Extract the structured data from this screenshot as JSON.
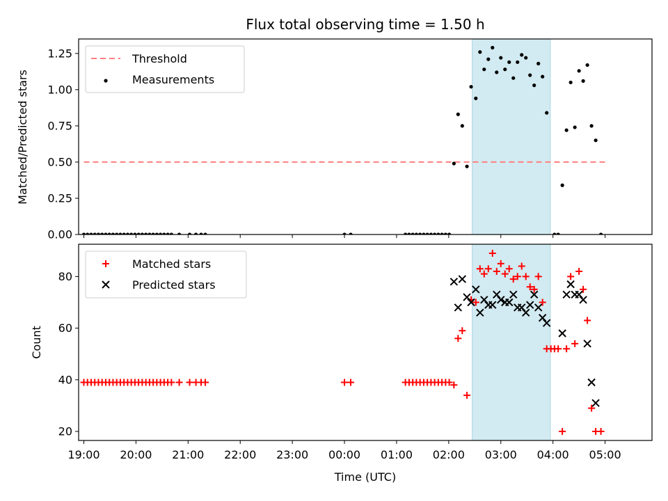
{
  "title": "Flux total observing time = 1.50 h",
  "colors": {
    "threshold": "#ff7f7f",
    "measurement": "#000000",
    "matched": "#ff0000",
    "predicted": "#000000",
    "highlight": "#add8e6"
  },
  "chart_data": [
    {
      "type": "scatter",
      "ylabel": "Matched/Predicted stars",
      "xlabel": "",
      "xlim": [
        -0.1,
        10.9
      ],
      "ylim": [
        0,
        1.35
      ],
      "yticks": [
        0,
        0.25,
        0.5,
        0.75,
        1.0,
        1.25
      ],
      "ytick_labels": [
        "0.00",
        "0.25",
        "0.50",
        "0.75",
        "1.00",
        "1.25"
      ],
      "highlight_span": [
        7.45,
        8.95
      ],
      "legend": {
        "position": "upper-left",
        "entries": [
          {
            "label": "Threshold",
            "marker": "dashed-line"
          },
          {
            "label": "Measurements",
            "marker": "dot"
          }
        ]
      },
      "threshold": {
        "name": "Threshold",
        "value": 0.5,
        "x": [
          0,
          10
        ]
      },
      "series": [
        {
          "name": "Measurements",
          "marker": "dot",
          "points": [
            [
              0,
              0
            ],
            [
              0.07,
              0
            ],
            [
              0.14,
              0
            ],
            [
              0.21,
              0
            ],
            [
              0.28,
              0
            ],
            [
              0.35,
              0
            ],
            [
              0.42,
              0
            ],
            [
              0.49,
              0
            ],
            [
              0.56,
              0
            ],
            [
              0.63,
              0
            ],
            [
              0.7,
              0
            ],
            [
              0.77,
              0
            ],
            [
              0.84,
              0
            ],
            [
              0.91,
              0
            ],
            [
              0.98,
              0
            ],
            [
              1.05,
              0
            ],
            [
              1.12,
              0
            ],
            [
              1.19,
              0
            ],
            [
              1.26,
              0
            ],
            [
              1.33,
              0
            ],
            [
              1.4,
              0
            ],
            [
              1.47,
              0
            ],
            [
              1.54,
              0
            ],
            [
              1.61,
              0
            ],
            [
              1.68,
              0
            ],
            [
              1.83,
              0
            ],
            [
              2.03,
              0
            ],
            [
              2.15,
              0
            ],
            [
              2.25,
              0
            ],
            [
              2.33,
              0
            ],
            [
              5.0,
              0
            ],
            [
              5.12,
              0
            ],
            [
              6.17,
              0
            ],
            [
              6.24,
              0
            ],
            [
              6.31,
              0
            ],
            [
              6.38,
              0
            ],
            [
              6.45,
              0
            ],
            [
              6.52,
              0
            ],
            [
              6.59,
              0
            ],
            [
              6.66,
              0
            ],
            [
              6.73,
              0
            ],
            [
              6.8,
              0
            ],
            [
              6.87,
              0
            ],
            [
              6.94,
              0
            ],
            [
              7.01,
              0
            ],
            [
              7.1,
              0.49
            ],
            [
              7.18,
              0.83
            ],
            [
              7.26,
              0.75
            ],
            [
              7.35,
              0.47
            ],
            [
              7.43,
              1.02
            ],
            [
              7.52,
              0.94
            ],
            [
              7.6,
              1.26
            ],
            [
              7.68,
              1.14
            ],
            [
              7.76,
              1.21
            ],
            [
              7.84,
              1.29
            ],
            [
              7.92,
              1.12
            ],
            [
              8.0,
              1.22
            ],
            [
              8.08,
              1.14
            ],
            [
              8.16,
              1.19
            ],
            [
              8.24,
              1.08
            ],
            [
              8.32,
              1.19
            ],
            [
              8.4,
              1.24
            ],
            [
              8.48,
              1.22
            ],
            [
              8.56,
              1.1
            ],
            [
              8.64,
              1.03
            ],
            [
              8.72,
              1.18
            ],
            [
              8.8,
              1.09
            ],
            [
              8.88,
              0.84
            ],
            [
              9.03,
              0
            ],
            [
              9.1,
              0
            ],
            [
              9.18,
              0.34
            ],
            [
              9.26,
              0.72
            ],
            [
              9.34,
              1.05
            ],
            [
              9.42,
              0.74
            ],
            [
              9.5,
              1.13
            ],
            [
              9.58,
              1.06
            ],
            [
              9.66,
              1.17
            ],
            [
              9.74,
              0.75
            ],
            [
              9.82,
              0.65
            ],
            [
              9.92,
              0
            ]
          ]
        }
      ]
    },
    {
      "type": "scatter",
      "ylabel": "Count",
      "xlabel": "Time (UTC)",
      "xlim": [
        -0.1,
        10.9
      ],
      "ylim": [
        16.5,
        92.5
      ],
      "yticks": [
        20,
        40,
        60,
        80
      ],
      "ytick_labels": [
        "20",
        "40",
        "60",
        "80"
      ],
      "xticks": [
        0,
        1,
        2,
        3,
        4,
        5,
        6,
        7,
        8,
        9,
        10
      ],
      "xtick_labels": [
        "19:00",
        "20:00",
        "21:00",
        "22:00",
        "23:00",
        "00:00",
        "01:00",
        "02:00",
        "03:00",
        "04:00",
        "05:00"
      ],
      "highlight_span": [
        7.45,
        8.95
      ],
      "legend": {
        "position": "upper-left",
        "entries": [
          {
            "label": "Matched stars",
            "marker": "plus"
          },
          {
            "label": "Predicted stars",
            "marker": "x"
          }
        ]
      },
      "series": [
        {
          "name": "Matched stars",
          "marker": "plus",
          "points": [
            [
              0,
              39
            ],
            [
              0.07,
              39
            ],
            [
              0.14,
              39
            ],
            [
              0.21,
              39
            ],
            [
              0.28,
              39
            ],
            [
              0.35,
              39
            ],
            [
              0.42,
              39
            ],
            [
              0.49,
              39
            ],
            [
              0.56,
              39
            ],
            [
              0.63,
              39
            ],
            [
              0.7,
              39
            ],
            [
              0.77,
              39
            ],
            [
              0.84,
              39
            ],
            [
              0.91,
              39
            ],
            [
              0.98,
              39
            ],
            [
              1.05,
              39
            ],
            [
              1.12,
              39
            ],
            [
              1.19,
              39
            ],
            [
              1.26,
              39
            ],
            [
              1.33,
              39
            ],
            [
              1.4,
              39
            ],
            [
              1.47,
              39
            ],
            [
              1.54,
              39
            ],
            [
              1.61,
              39
            ],
            [
              1.68,
              39
            ],
            [
              1.83,
              39
            ],
            [
              2.03,
              39
            ],
            [
              2.15,
              39
            ],
            [
              2.25,
              39
            ],
            [
              2.33,
              39
            ],
            [
              5.0,
              39
            ],
            [
              5.12,
              39
            ],
            [
              6.17,
              39
            ],
            [
              6.24,
              39
            ],
            [
              6.31,
              39
            ],
            [
              6.38,
              39
            ],
            [
              6.45,
              39
            ],
            [
              6.52,
              39
            ],
            [
              6.59,
              39
            ],
            [
              6.66,
              39
            ],
            [
              6.73,
              39
            ],
            [
              6.8,
              39
            ],
            [
              6.87,
              39
            ],
            [
              6.94,
              39
            ],
            [
              7.01,
              39
            ],
            [
              7.1,
              38
            ],
            [
              7.18,
              56
            ],
            [
              7.26,
              59
            ],
            [
              7.35,
              34
            ],
            [
              7.43,
              71
            ],
            [
              7.52,
              70
            ],
            [
              7.6,
              83
            ],
            [
              7.68,
              81
            ],
            [
              7.76,
              83
            ],
            [
              7.84,
              89
            ],
            [
              7.92,
              82
            ],
            [
              8.0,
              85
            ],
            [
              8.08,
              81
            ],
            [
              8.16,
              83
            ],
            [
              8.24,
              79
            ],
            [
              8.32,
              80
            ],
            [
              8.4,
              84
            ],
            [
              8.48,
              80
            ],
            [
              8.56,
              76
            ],
            [
              8.64,
              75
            ],
            [
              8.72,
              80
            ],
            [
              8.8,
              70
            ],
            [
              8.88,
              52
            ],
            [
              8.96,
              52
            ],
            [
              9.03,
              52
            ],
            [
              9.1,
              52
            ],
            [
              9.18,
              20
            ],
            [
              9.26,
              52
            ],
            [
              9.34,
              80
            ],
            [
              9.42,
              54
            ],
            [
              9.5,
              82
            ],
            [
              9.58,
              75
            ],
            [
              9.66,
              63
            ],
            [
              9.74,
              29
            ],
            [
              9.82,
              20
            ],
            [
              9.92,
              20
            ]
          ]
        },
        {
          "name": "Predicted stars",
          "marker": "x",
          "points": [
            [
              7.1,
              78
            ],
            [
              7.18,
              68
            ],
            [
              7.26,
              79
            ],
            [
              7.35,
              72
            ],
            [
              7.43,
              70
            ],
            [
              7.52,
              75
            ],
            [
              7.6,
              66
            ],
            [
              7.68,
              71
            ],
            [
              7.76,
              69
            ],
            [
              7.84,
              69
            ],
            [
              7.92,
              73
            ],
            [
              8.0,
              71
            ],
            [
              8.08,
              70
            ],
            [
              8.16,
              70
            ],
            [
              8.24,
              73
            ],
            [
              8.32,
              68
            ],
            [
              8.4,
              68
            ],
            [
              8.48,
              66
            ],
            [
              8.56,
              69
            ],
            [
              8.64,
              73
            ],
            [
              8.72,
              68
            ],
            [
              8.8,
              64
            ],
            [
              8.88,
              62
            ],
            [
              9.18,
              58
            ],
            [
              9.26,
              73
            ],
            [
              9.34,
              77
            ],
            [
              9.42,
              73
            ],
            [
              9.5,
              73
            ],
            [
              9.58,
              71
            ],
            [
              9.66,
              54
            ],
            [
              9.74,
              39
            ],
            [
              9.82,
              31
            ]
          ]
        }
      ]
    }
  ]
}
